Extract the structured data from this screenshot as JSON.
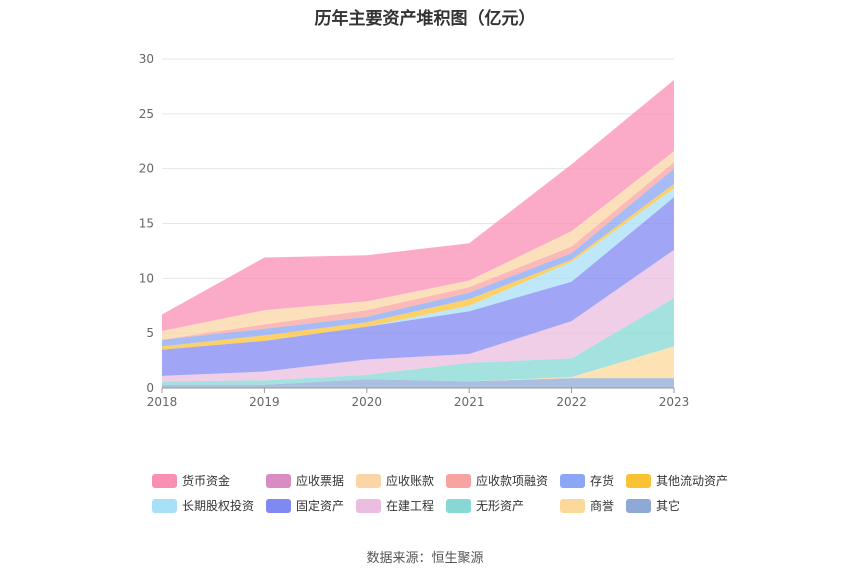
{
  "chart_data": {
    "type": "area",
    "stacked": true,
    "title": "历年主要资产堆积图（亿元）",
    "x": [
      "2018",
      "2019",
      "2020",
      "2021",
      "2022",
      "2023"
    ],
    "ylim": [
      0,
      30
    ],
    "yticks": [
      0,
      5,
      10,
      15,
      20,
      25,
      30
    ],
    "series": [
      {
        "name": "其它",
        "color": "#8fa9d6",
        "values": [
          0.3,
          0.3,
          0.8,
          0.6,
          0.9,
          0.9
        ]
      },
      {
        "name": "商誉",
        "color": "#fcd99b",
        "values": [
          0,
          0,
          0,
          0,
          0.1,
          2.9
        ]
      },
      {
        "name": "无形资产",
        "color": "#86d8d4",
        "values": [
          0.3,
          0.4,
          0.4,
          1.7,
          1.7,
          4.4
        ]
      },
      {
        "name": "在建工程",
        "color": "#ebbde0",
        "values": [
          0.5,
          0.8,
          1.4,
          0.8,
          3.4,
          4.4
        ]
      },
      {
        "name": "固定资产",
        "color": "#8088f2",
        "values": [
          2.4,
          2.8,
          3.0,
          3.9,
          3.6,
          4.8
        ]
      },
      {
        "name": "长期股权投资",
        "color": "#a8e0f8",
        "values": [
          0,
          0,
          0,
          0.5,
          1.8,
          0.8
        ]
      },
      {
        "name": "其他流动资产",
        "color": "#fbc234",
        "values": [
          0.3,
          0.5,
          0.4,
          0.6,
          0.2,
          0.4
        ]
      },
      {
        "name": "存货",
        "color": "#8aa6f4",
        "values": [
          0.6,
          0.6,
          0.5,
          0.6,
          0.6,
          1.4
        ]
      },
      {
        "name": "应收款项融资",
        "color": "#f9a3a0",
        "values": [
          0,
          0.4,
          0.6,
          0.5,
          0.6,
          0.6
        ]
      },
      {
        "name": "应收账款",
        "color": "#fbd5a5",
        "values": [
          0.8,
          1.3,
          0.8,
          0.6,
          1.4,
          1.0
        ]
      },
      {
        "name": "应收票据",
        "color": "#d98cc1",
        "values": [
          0,
          0,
          0,
          0,
          0,
          0
        ]
      },
      {
        "name": "货币资金",
        "color": "#f98fb4",
        "values": [
          1.5,
          4.8,
          4.2,
          3.4,
          6.1,
          6.5
        ]
      }
    ],
    "legend_order": [
      "货币资金",
      "应收票据",
      "应收账款",
      "应收款项融资",
      "存货",
      "其他流动资产",
      "长期股权投资",
      "固定资产",
      "在建工程",
      "无形资产",
      "商誉",
      "其它"
    ]
  },
  "footer": {
    "source": "数据来源：恒生聚源"
  }
}
